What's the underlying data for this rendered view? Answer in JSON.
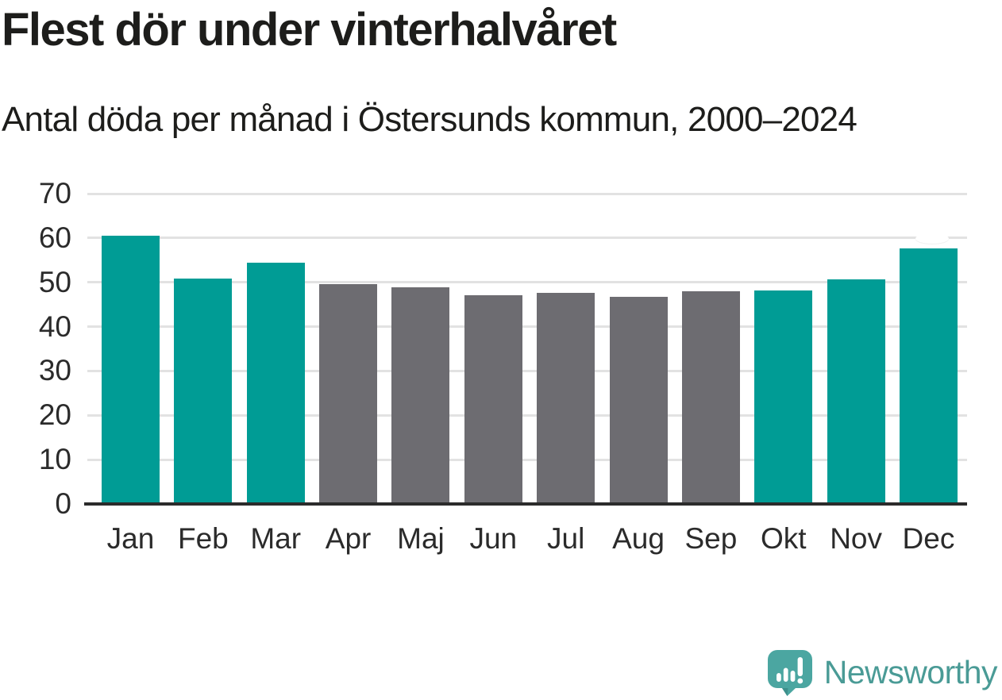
{
  "header": {
    "title": "Flest dör under vinterhalvåret",
    "subtitle": "Antal döda per månad i Östersunds kommun, 2000–2024"
  },
  "chart_data": {
    "type": "bar",
    "categories": [
      "Jan",
      "Feb",
      "Mar",
      "Apr",
      "Maj",
      "Jun",
      "Jul",
      "Aug",
      "Sep",
      "Okt",
      "Nov",
      "Dec"
    ],
    "values": [
      60.6,
      50.9,
      54.4,
      49.6,
      48.8,
      47.1,
      47.6,
      46.7,
      48.0,
      48.2,
      50.7,
      57.6
    ],
    "bar_roles": [
      "highlight",
      "highlight",
      "highlight",
      "muted",
      "muted",
      "muted",
      "muted",
      "muted",
      "muted",
      "highlight",
      "highlight",
      "highlight"
    ],
    "title": "Flest dör under vinterhalvåret",
    "subtitle": "Antal döda per månad i Östersunds kommun, 2000–2024",
    "xlabel": "",
    "ylabel": "",
    "ylim": [
      0,
      70
    ],
    "yticks": [
      0,
      10,
      20,
      30,
      40,
      50,
      60,
      70
    ],
    "grid": "horizontal-only",
    "legend": "none",
    "colors": {
      "highlight": "#009c95",
      "muted": "#6d6c71",
      "gridline": "#e2e2e2",
      "axis": "#2b2b2b",
      "tick_text": "#2b2b2b",
      "title_text": "#1d1d1b",
      "background": "#ffffff"
    }
  },
  "footer": {
    "brand": "Newsworthy",
    "brand_color": "#4a9b96",
    "logo_icon": "speech-bubble-bar-chart-icon",
    "logo_colors": {
      "bubble": "#4ba6a1",
      "bubble_shadow": "#3e8f8b",
      "marks": "#ffffff"
    }
  }
}
